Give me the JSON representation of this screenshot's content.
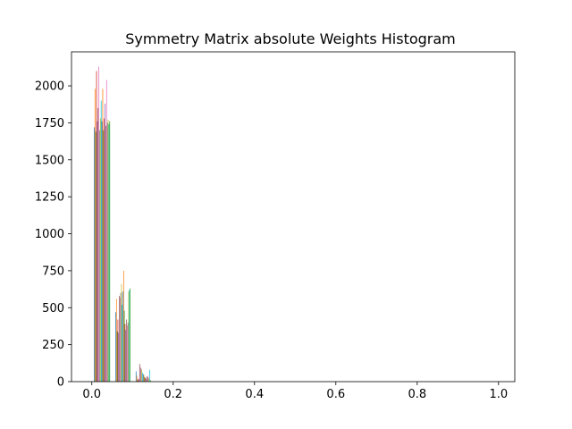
{
  "chart_data": {
    "type": "bar",
    "title": "Symmetry Matrix absolute Weights Histogram",
    "xlabel": "",
    "ylabel": "",
    "xlim": [
      -0.05,
      1.04
    ],
    "ylim": [
      0,
      2230
    ],
    "x_ticks": [
      0.0,
      0.2,
      0.4,
      0.6,
      0.8,
      1.0
    ],
    "x_tick_labels": [
      "0.0",
      "0.2",
      "0.4",
      "0.6",
      "0.8",
      "1.0"
    ],
    "y_ticks": [
      0,
      250,
      500,
      750,
      1000,
      1250,
      1500,
      1750,
      2000
    ],
    "y_tick_labels": [
      "0",
      "250",
      "500",
      "750",
      "1000",
      "1250",
      "1500",
      "1750",
      "2000"
    ],
    "grid": false,
    "legend": "none",
    "bins": [
      [
        0.005,
        0.045
      ],
      [
        0.058,
        0.095
      ],
      [
        0.108,
        0.145
      ]
    ],
    "series": [
      {
        "color": "#1f77b4",
        "values": [
          1720,
          470,
          70
        ]
      },
      {
        "color": "#ff7f0e",
        "values": [
          1980,
          560,
          40
        ]
      },
      {
        "color": "#2ca02c",
        "values": [
          1690,
          340,
          10
        ]
      },
      {
        "color": "#d62728",
        "values": [
          2100,
          420,
          20
        ]
      },
      {
        "color": "#9467bd",
        "values": [
          1760,
          330,
          15
        ]
      },
      {
        "color": "#8c564b",
        "values": [
          1850,
          580,
          120
        ]
      },
      {
        "color": "#e377c2",
        "values": [
          2130,
          570,
          100
        ]
      },
      {
        "color": "#7f7f7f",
        "values": [
          1700,
          600,
          90
        ]
      },
      {
        "color": "#bcbd22",
        "values": [
          1780,
          660,
          80
        ]
      },
      {
        "color": "#17becf",
        "values": [
          1900,
          520,
          60
        ]
      },
      {
        "color": "#1f77b4",
        "values": [
          1760,
          610,
          50
        ]
      },
      {
        "color": "#ff7f0e",
        "values": [
          1980,
          750,
          45
        ]
      },
      {
        "color": "#2ca02c",
        "values": [
          1700,
          480,
          30
        ]
      },
      {
        "color": "#d62728",
        "values": [
          1780,
          390,
          25
        ]
      },
      {
        "color": "#9467bd",
        "values": [
          1880,
          350,
          20
        ]
      },
      {
        "color": "#8c564b",
        "values": [
          1730,
          420,
          35
        ]
      },
      {
        "color": "#e377c2",
        "values": [
          2040,
          380,
          40
        ]
      },
      {
        "color": "#7f7f7f",
        "values": [
          1750,
          400,
          30
        ]
      },
      {
        "color": "#bcbd22",
        "values": [
          1770,
          610,
          20
        ]
      },
      {
        "color": "#17becf",
        "values": [
          1740,
          620,
          80
        ]
      },
      {
        "color": "#2ca02c",
        "values": [
          1760,
          630,
          10
        ]
      }
    ]
  }
}
